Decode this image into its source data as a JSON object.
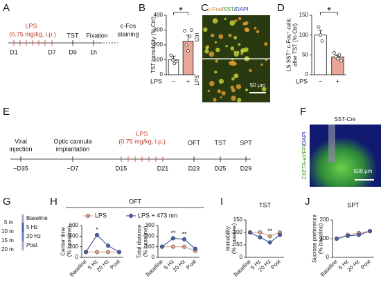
{
  "panel_labels": [
    "A",
    "B",
    "C",
    "D",
    "E",
    "F",
    "G",
    "H",
    "I",
    "J"
  ],
  "timeline_a": {
    "lps": "LPS",
    "dose": "(0.75 mg/kg, i.p.)",
    "tst": "TST",
    "fixation": "Fixation",
    "cfos": [
      "c-Fos",
      "staining"
    ],
    "days": [
      "D1",
      "D7",
      "D9",
      "1h"
    ]
  },
  "image_c": {
    "stains": [
      "c-Fos",
      "/",
      "SST",
      "/",
      "DAPI"
    ],
    "rows": [
      "Ctrl",
      "LPS"
    ],
    "scale": "50 μm"
  },
  "timeline_e": {
    "viral": [
      "Viral",
      "injection"
    ],
    "cannula": [
      "Optic cannula",
      "implantation"
    ],
    "lps": "LPS",
    "dose": "(0.75 mg/kg, i.p.)",
    "oft": "OFT",
    "tst": "TST",
    "spt": "SPT",
    "days": [
      "−D35",
      "−D7",
      "D15",
      "D21",
      "D23",
      "D25",
      "D29"
    ]
  },
  "image_f": {
    "title": "SST-Cre",
    "stains": [
      "ChETA-eYFP",
      "/",
      "DAPI"
    ],
    "scale": "500 μm"
  },
  "protocol_g": {
    "times": [
      "5 m",
      "10 m",
      "15 m",
      "20 m"
    ],
    "phases": [
      "Baseline",
      "5 Hz",
      "20 Hz",
      "Post"
    ]
  },
  "h_group_title": "OFT",
  "chart_data": [
    {
      "type": "bar",
      "ylabel": [
        "TST immobility (% Ctrl)"
      ],
      "xlabel": "LPS",
      "categories": [
        "−",
        "+"
      ],
      "values": [
        100,
        225
      ],
      "errors": [
        25,
        40
      ],
      "colors": [
        "#ffffff",
        "#e8a598"
      ],
      "points": [
        [
          130,
          100,
          75,
          88
        ],
        [
          295,
          200,
          160,
          260,
          300
        ]
      ],
      "ylim": [
        0,
        400
      ],
      "yticks": [
        0,
        100,
        200,
        300,
        400
      ],
      "significance": "*"
    },
    {
      "type": "bar",
      "ylabel": [
        "LS SST⁺ c-Fos⁺ cells",
        "after TST (% Ctrl)"
      ],
      "xlabel": "LPS",
      "categories": [
        "−",
        "+"
      ],
      "values": [
        100,
        45
      ],
      "errors": [
        12,
        5
      ],
      "colors": [
        "#ffffff",
        "#e8a598"
      ],
      "points": [
        [
          120,
          100,
          85
        ],
        [
          55,
          45,
          40,
          50,
          35
        ]
      ],
      "ylim": [
        0,
        150
      ],
      "yticks": [
        0,
        50,
        100,
        150
      ],
      "significance": "*"
    },
    {
      "type": "line",
      "ylabel": [
        "Center time",
        "(% baseline)"
      ],
      "categories": [
        "Baseline",
        "5 Hz",
        "20 Hz",
        "Post"
      ],
      "series": [
        {
          "name": "LPS",
          "color": "#d9a28c",
          "values": [
            100,
            100,
            100,
            100
          ]
        },
        {
          "name": "LPS + 473 nm",
          "color": "#4a5fa8",
          "values": [
            100,
            420,
            220,
            100
          ]
        }
      ],
      "annotations": [
        null,
        "*",
        null,
        null
      ],
      "ylim": [
        0,
        600
      ],
      "yticks": [
        0,
        200,
        400,
        600
      ]
    },
    {
      "type": "line",
      "ylabel": [
        "Total distance",
        "(% baseline)"
      ],
      "categories": [
        "Baseline",
        "5 Hz",
        "20 Hz",
        "Post"
      ],
      "series": [
        {
          "color": "#d9a28c",
          "values": [
            100,
            100,
            100,
            60
          ]
        },
        {
          "color": "#4a5fa8",
          "values": [
            100,
            180,
            170,
            80
          ]
        }
      ],
      "annotations": [
        null,
        "**",
        "**",
        null
      ],
      "ylim": [
        0,
        300
      ],
      "yticks": [
        0,
        100,
        200,
        300
      ]
    },
    {
      "type": "line",
      "title": "TST",
      "ylabel": [
        "Immobility",
        "(% baseline)"
      ],
      "categories": [
        "Baseline",
        "5 Hz",
        "20 Hz",
        "Post"
      ],
      "series": [
        {
          "color": "#d9a28c",
          "values": [
            100,
            100,
            85,
            100
          ]
        },
        {
          "color": "#4a5fa8",
          "values": [
            100,
            80,
            60,
            90
          ]
        }
      ],
      "annotations": [
        null,
        null,
        "**",
        null
      ],
      "ylim": [
        0,
        150
      ],
      "yticks": [
        0,
        50,
        100,
        150
      ]
    },
    {
      "type": "line",
      "title": "SPT",
      "ylabel": [
        "Sucrose preference",
        "(% baseline)"
      ],
      "categories": [
        "Baseline",
        "5 Hz",
        "20 Hz",
        "Post"
      ],
      "series": [
        {
          "color": "#d9a28c",
          "values": [
            100,
            120,
            130,
            140
          ]
        },
        {
          "color": "#4a5fa8",
          "values": [
            100,
            115,
            120,
            140
          ]
        }
      ],
      "ylim": [
        0,
        200
      ],
      "yticks": [
        0,
        100,
        200
      ]
    }
  ]
}
